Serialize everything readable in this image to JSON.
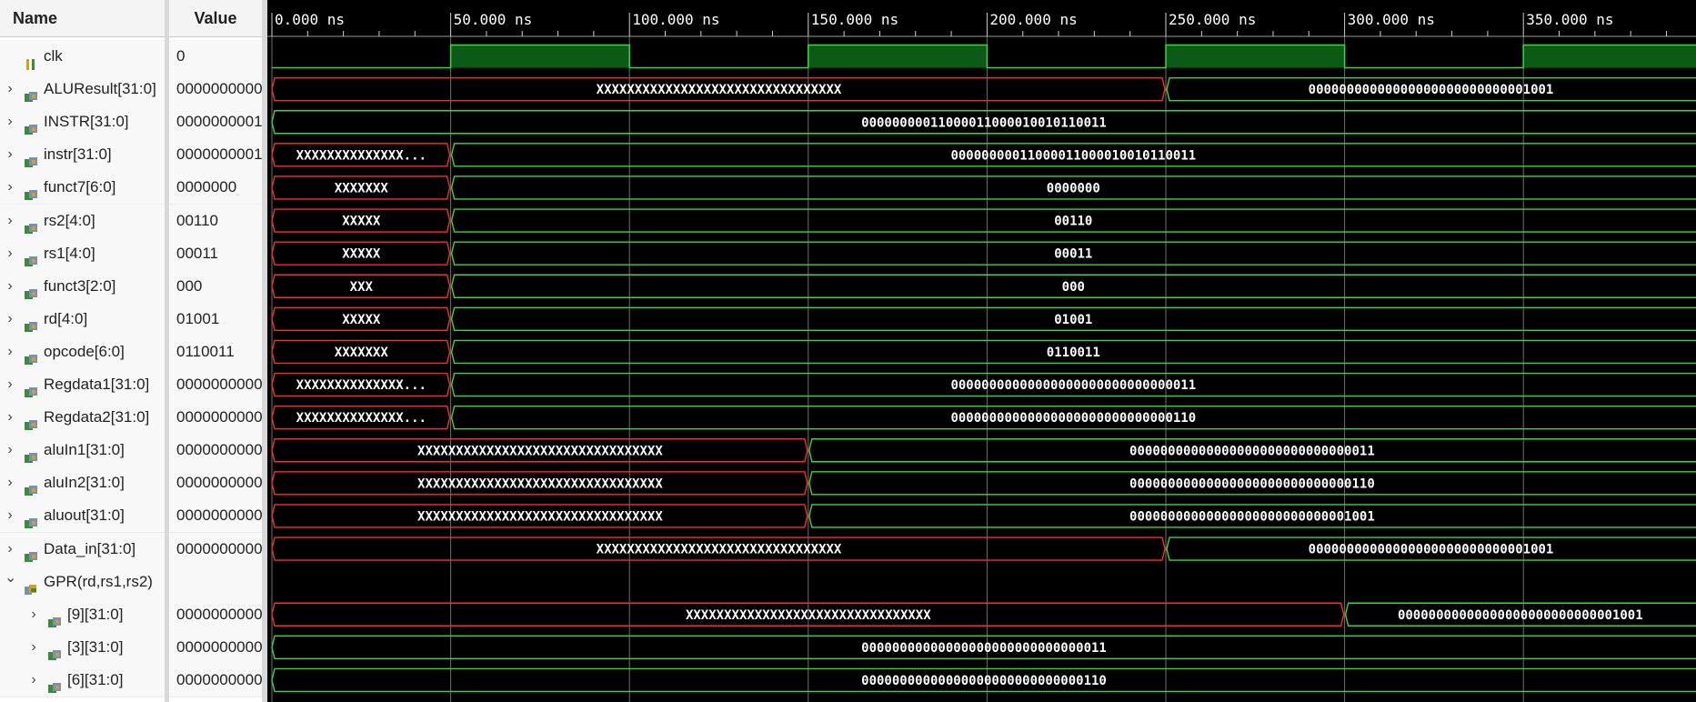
{
  "headers": {
    "name": "Name",
    "value": "Value"
  },
  "time_unit": "ns",
  "time_axis": {
    "start_ns": 0,
    "visible_end_ns": 393,
    "tick_labels": [
      "0.000 ns",
      "50.000 ns",
      "100.000 ns",
      "150.000 ns",
      "200.000 ns",
      "250.000 ns",
      "300.000 ns",
      "350.000 ns"
    ],
    "major_ticks_ns": [
      0,
      50,
      100,
      150,
      200,
      250,
      300,
      350
    ]
  },
  "colors": {
    "undefined": "#ff2a2a",
    "valid": "#3cd53c",
    "clock_fill": "#0b5a16",
    "grid": "#6f6f6f"
  },
  "signals": [
    {
      "name": "clk",
      "value": "0",
      "icon": "clock-signal-icon",
      "indent": 0,
      "expand": "none",
      "kind": "clock",
      "clock": {
        "high_intervals_ns": [
          [
            50,
            100
          ],
          [
            150,
            200
          ],
          [
            250,
            300
          ],
          [
            350,
            400
          ]
        ]
      }
    },
    {
      "name": "ALUResult[31:0]",
      "value": "0000000000",
      "icon": "bus-signal-icon",
      "indent": 0,
      "expand": "collapsed",
      "kind": "bus",
      "segments": [
        {
          "start": 0,
          "end": 250,
          "label": "XXXXXXXXXXXXXXXXXXXXXXXXXXXXXXXX",
          "state": "undefined"
        },
        {
          "start": 250,
          "end": 400,
          "label": "00000000000000000000000000001001",
          "state": "valid"
        }
      ]
    },
    {
      "name": "INSTR[31:0]",
      "value": "0000000001",
      "icon": "bus-signal-icon",
      "indent": 0,
      "expand": "collapsed",
      "kind": "bus",
      "segments": [
        {
          "start": 0,
          "end": 400,
          "label": "00000000011000011000010010110011",
          "state": "valid"
        }
      ]
    },
    {
      "name": "instr[31:0]",
      "value": "0000000001",
      "icon": "bus-signal-icon",
      "indent": 0,
      "expand": "collapsed",
      "kind": "bus",
      "segments": [
        {
          "start": 0,
          "end": 50,
          "label": "XXXXXXXXXXXXXX...",
          "state": "undefined"
        },
        {
          "start": 50,
          "end": 400,
          "label": "00000000011000011000010010110011",
          "state": "valid"
        }
      ]
    },
    {
      "name": "funct7[6:0]",
      "value": "0000000",
      "icon": "bus-signal-icon",
      "indent": 0,
      "expand": "collapsed",
      "kind": "bus",
      "segments": [
        {
          "start": 0,
          "end": 50,
          "label": "XXXXXXX",
          "state": "undefined"
        },
        {
          "start": 50,
          "end": 400,
          "label": "0000000",
          "state": "valid"
        }
      ]
    },
    {
      "name": "rs2[4:0]",
      "value": "00110",
      "icon": "bus-signal-icon",
      "indent": 0,
      "expand": "collapsed",
      "kind": "bus",
      "segments": [
        {
          "start": 0,
          "end": 50,
          "label": "XXXXX",
          "state": "undefined"
        },
        {
          "start": 50,
          "end": 400,
          "label": "00110",
          "state": "valid"
        }
      ]
    },
    {
      "name": "rs1[4:0]",
      "value": "00011",
      "icon": "bus-signal-icon",
      "indent": 0,
      "expand": "collapsed",
      "kind": "bus",
      "segments": [
        {
          "start": 0,
          "end": 50,
          "label": "XXXXX",
          "state": "undefined"
        },
        {
          "start": 50,
          "end": 400,
          "label": "00011",
          "state": "valid"
        }
      ]
    },
    {
      "name": "funct3[2:0]",
      "value": "000",
      "icon": "bus-signal-icon",
      "indent": 0,
      "expand": "collapsed",
      "kind": "bus",
      "segments": [
        {
          "start": 0,
          "end": 50,
          "label": "XXX",
          "state": "undefined"
        },
        {
          "start": 50,
          "end": 400,
          "label": "000",
          "state": "valid"
        }
      ]
    },
    {
      "name": "rd[4:0]",
      "value": "01001",
      "icon": "bus-signal-icon",
      "indent": 0,
      "expand": "collapsed",
      "kind": "bus",
      "segments": [
        {
          "start": 0,
          "end": 50,
          "label": "XXXXX",
          "state": "undefined"
        },
        {
          "start": 50,
          "end": 400,
          "label": "01001",
          "state": "valid"
        }
      ]
    },
    {
      "name": "opcode[6:0]",
      "value": "0110011",
      "icon": "bus-signal-icon",
      "indent": 0,
      "expand": "collapsed",
      "kind": "bus",
      "segments": [
        {
          "start": 0,
          "end": 50,
          "label": "XXXXXXX",
          "state": "undefined"
        },
        {
          "start": 50,
          "end": 400,
          "label": "0110011",
          "state": "valid"
        }
      ]
    },
    {
      "name": "Regdata1[31:0]",
      "value": "0000000000",
      "icon": "bus-signal-icon",
      "indent": 0,
      "expand": "collapsed",
      "kind": "bus",
      "segments": [
        {
          "start": 0,
          "end": 50,
          "label": "XXXXXXXXXXXXXX...",
          "state": "undefined"
        },
        {
          "start": 50,
          "end": 400,
          "label": "00000000000000000000000000000011",
          "state": "valid"
        }
      ]
    },
    {
      "name": "Regdata2[31:0]",
      "value": "0000000000",
      "icon": "bus-signal-icon",
      "indent": 0,
      "expand": "collapsed",
      "kind": "bus",
      "segments": [
        {
          "start": 0,
          "end": 50,
          "label": "XXXXXXXXXXXXXX...",
          "state": "undefined"
        },
        {
          "start": 50,
          "end": 400,
          "label": "00000000000000000000000000000110",
          "state": "valid"
        }
      ]
    },
    {
      "name": "aluIn1[31:0]",
      "value": "0000000000",
      "icon": "bus-signal-icon",
      "indent": 0,
      "expand": "collapsed",
      "kind": "bus",
      "segments": [
        {
          "start": 0,
          "end": 150,
          "label": "XXXXXXXXXXXXXXXXXXXXXXXXXXXXXXXX",
          "state": "undefined"
        },
        {
          "start": 150,
          "end": 400,
          "label": "00000000000000000000000000000011",
          "state": "valid"
        }
      ]
    },
    {
      "name": "aluIn2[31:0]",
      "value": "0000000000",
      "icon": "bus-signal-icon",
      "indent": 0,
      "expand": "collapsed",
      "kind": "bus",
      "segments": [
        {
          "start": 0,
          "end": 150,
          "label": "XXXXXXXXXXXXXXXXXXXXXXXXXXXXXXXX",
          "state": "undefined"
        },
        {
          "start": 150,
          "end": 400,
          "label": "00000000000000000000000000000110",
          "state": "valid"
        }
      ]
    },
    {
      "name": "aluout[31:0]",
      "value": "0000000000",
      "icon": "bus-signal-icon",
      "indent": 0,
      "expand": "collapsed",
      "kind": "bus",
      "segments": [
        {
          "start": 0,
          "end": 150,
          "label": "XXXXXXXXXXXXXXXXXXXXXXXXXXXXXXXX",
          "state": "undefined"
        },
        {
          "start": 150,
          "end": 400,
          "label": "00000000000000000000000000001001",
          "state": "valid"
        }
      ]
    },
    {
      "name": "Data_in[31:0]",
      "value": "0000000000",
      "icon": "bus-signal-icon",
      "indent": 0,
      "expand": "collapsed",
      "kind": "bus",
      "segments": [
        {
          "start": 0,
          "end": 250,
          "label": "XXXXXXXXXXXXXXXXXXXXXXXXXXXXXXXX",
          "state": "undefined"
        },
        {
          "start": 250,
          "end": 400,
          "label": "00000000000000000000000000001001",
          "state": "valid"
        }
      ]
    },
    {
      "name": "GPR(rd,rs1,rs2)",
      "value": "",
      "icon": "array-signal-icon",
      "indent": 0,
      "expand": "expanded",
      "kind": "group"
    },
    {
      "name": "[9][31:0]",
      "value": "0000000000",
      "icon": "bus-signal-icon",
      "indent": 1,
      "expand": "collapsed",
      "kind": "bus",
      "segments": [
        {
          "start": 0,
          "end": 300,
          "label": "XXXXXXXXXXXXXXXXXXXXXXXXXXXXXXXX",
          "state": "undefined"
        },
        {
          "start": 300,
          "end": 400,
          "label": "00000000000000000000000000001001",
          "state": "valid"
        }
      ]
    },
    {
      "name": "[3][31:0]",
      "value": "0000000000",
      "icon": "bus-signal-icon",
      "indent": 1,
      "expand": "collapsed",
      "kind": "bus",
      "segments": [
        {
          "start": 0,
          "end": 400,
          "label": "00000000000000000000000000000011",
          "state": "valid"
        }
      ]
    },
    {
      "name": "[6][31:0]",
      "value": "0000000000",
      "icon": "bus-signal-icon",
      "indent": 1,
      "expand": "collapsed",
      "kind": "bus",
      "segments": [
        {
          "start": 0,
          "end": 400,
          "label": "00000000000000000000000000000110",
          "state": "valid"
        }
      ]
    }
  ]
}
